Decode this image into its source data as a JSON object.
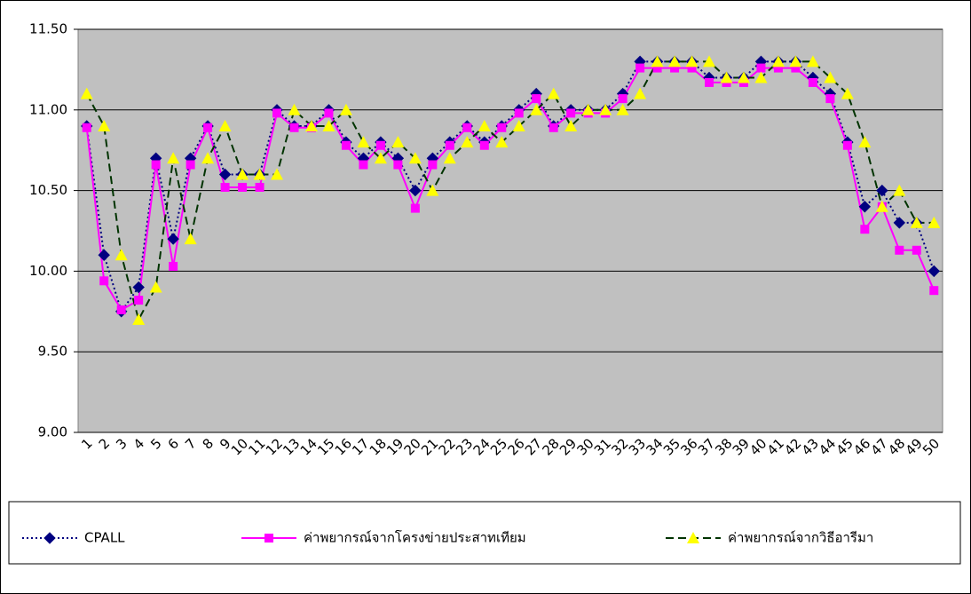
{
  "chart_data": {
    "type": "line",
    "categories": [
      "1",
      "2",
      "3",
      "4",
      "5",
      "6",
      "7",
      "8",
      "9",
      "10",
      "11",
      "12",
      "13",
      "14",
      "15",
      "16",
      "17",
      "18",
      "19",
      "20",
      "21",
      "22",
      "23",
      "24",
      "25",
      "26",
      "27",
      "28",
      "29",
      "30",
      "31",
      "32",
      "33",
      "34",
      "35",
      "36",
      "37",
      "38",
      "39",
      "40",
      "41",
      "42",
      "43",
      "44",
      "45",
      "46",
      "47",
      "48",
      "49",
      "50"
    ],
    "series": [
      {
        "name": "CPALL",
        "color": "#000080",
        "marker_color": "#000080",
        "marker": "diamond",
        "dash": "2,3",
        "values": [
          10.9,
          10.1,
          9.75,
          9.9,
          10.7,
          10.2,
          10.7,
          10.9,
          10.6,
          10.6,
          10.6,
          11.0,
          10.9,
          10.9,
          11.0,
          10.8,
          10.7,
          10.8,
          10.7,
          10.5,
          10.7,
          10.8,
          10.9,
          10.8,
          10.9,
          11.0,
          11.1,
          10.9,
          11.0,
          11.0,
          11.0,
          11.1,
          11.3,
          11.3,
          11.3,
          11.3,
          11.2,
          11.2,
          11.2,
          11.3,
          11.3,
          11.3,
          11.2,
          11.1,
          10.8,
          10.4,
          10.5,
          10.3,
          10.3,
          10.0
        ]
      },
      {
        "name": "ค่าพยากรณ์จากโครงข่ายประสาทเทียม",
        "color": "#ff00ff",
        "marker_color": "#ff00ff",
        "marker": "square",
        "dash": "none",
        "values": [
          10.89,
          9.94,
          9.76,
          9.82,
          10.66,
          10.03,
          10.66,
          10.89,
          10.52,
          10.52,
          10.52,
          10.98,
          10.89,
          10.89,
          10.98,
          10.78,
          10.66,
          10.78,
          10.66,
          10.39,
          10.66,
          10.78,
          10.89,
          10.78,
          10.89,
          10.98,
          11.07,
          10.89,
          10.98,
          10.98,
          10.98,
          11.07,
          11.26,
          11.26,
          11.26,
          11.26,
          11.17,
          11.17,
          11.17,
          11.26,
          11.26,
          11.26,
          11.17,
          11.07,
          10.78,
          10.26,
          10.4,
          10.13,
          10.13,
          9.88
        ]
      },
      {
        "name": "ค่าพยากรณ์จากวิธีอารีมา",
        "color": "#003300",
        "marker_color": "#ffff00",
        "marker": "triangle",
        "dash": "9,5",
        "values": [
          11.1,
          10.9,
          10.1,
          9.7,
          9.9,
          10.7,
          10.2,
          10.7,
          10.9,
          10.6,
          10.6,
          10.6,
          11.0,
          10.9,
          10.9,
          11.0,
          10.8,
          10.7,
          10.8,
          10.7,
          10.5,
          10.7,
          10.8,
          10.9,
          10.8,
          10.9,
          11.0,
          11.1,
          10.9,
          11.0,
          11.0,
          11.0,
          11.1,
          11.3,
          11.3,
          11.3,
          11.3,
          11.2,
          11.2,
          11.2,
          11.3,
          11.3,
          11.3,
          11.2,
          11.1,
          10.8,
          10.4,
          10.5,
          10.3,
          10.3
        ]
      }
    ],
    "ylim": [
      9.0,
      11.5
    ],
    "yticks": [
      {
        "value": 9.0,
        "label": "9.00"
      },
      {
        "value": 9.5,
        "label": "9.50"
      },
      {
        "value": 10.0,
        "label": "10.00"
      },
      {
        "value": 10.5,
        "label": "10.50"
      },
      {
        "value": 11.0,
        "label": "11.00"
      },
      {
        "value": 11.5,
        "label": "11.50"
      }
    ],
    "grid": true,
    "plot_background": "#c0c0c0",
    "legend": "bottom"
  }
}
